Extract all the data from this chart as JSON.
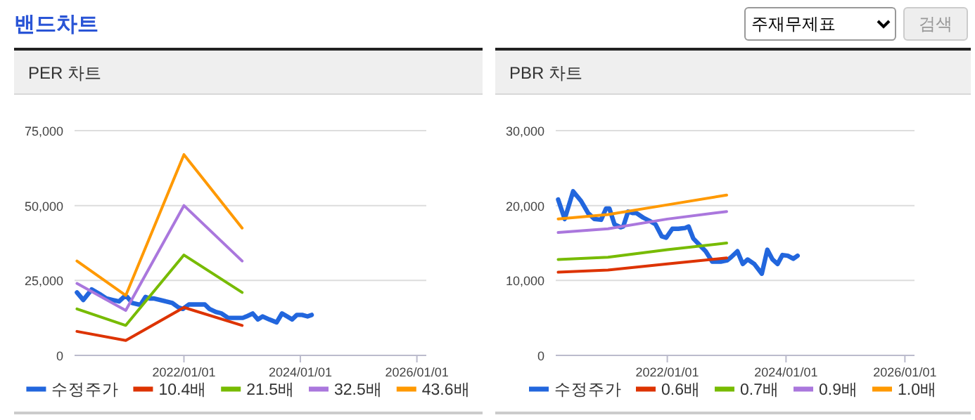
{
  "chart_data": [
    {
      "type": "other",
      "title": "밴드차트",
      "annotations": [
        "주재무제표",
        "검색"
      ]
    },
    {
      "type": "line",
      "title": "PER 차트",
      "xlim": [
        "2020-02-15",
        "2026-03-01"
      ],
      "ylim": [
        0,
        75000
      ],
      "yticks": [
        0,
        {
          "value": 25000,
          "label": "25,000"
        },
        {
          "value": 50000,
          "label": "50,000"
        },
        {
          "value": 75000,
          "label": "75,000"
        }
      ],
      "xticks": [
        {
          "value": "2022-01-01",
          "label": "2022/01/01"
        },
        {
          "value": "2024-01-01",
          "label": "2024/01/01"
        },
        {
          "value": "2026-01-01",
          "label": "2026/01/01"
        }
      ],
      "grid": "y",
      "legend": "bottom",
      "series": [
        {
          "name": "수정주가",
          "color": "#2266dd",
          "x": [
            "2020-03-01",
            "2020-04-10",
            "2020-06-01",
            "2020-07-20",
            "2020-09-01",
            "2020-10-10",
            "2020-11-20",
            "2020-12-20",
            "2021-01-10",
            "2021-02-10",
            "2021-03-20",
            "2021-04-05",
            "2021-05-05",
            "2021-06-01",
            "2021-06-25",
            "2021-08-05",
            "2021-09-10",
            "2021-10-20",
            "2021-11-28",
            "2021-12-25",
            "2022-02-01",
            "2022-03-10",
            "2022-04-20",
            "2022-05-12",
            "2022-06-10",
            "2022-07-20",
            "2022-08-25",
            "2022-10-05",
            "2022-11-25",
            "2023-01-05",
            "2023-01-28",
            "2023-03-08",
            "2023-04-10",
            "2023-05-10",
            "2023-06-20",
            "2023-08-05",
            "2023-09-08",
            "2023-10-10",
            "2023-11-10",
            "2023-12-10",
            "2024-01-12",
            "2024-02-15",
            "2024-03-12"
          ],
          "values": [
            21000,
            18500,
            22000,
            20500,
            19000,
            18500,
            18000,
            19500,
            19500,
            17500,
            17000,
            17000,
            19500,
            19000,
            19000,
            18500,
            18000,
            17500,
            16000,
            15500,
            17000,
            17000,
            17000,
            17000,
            15500,
            14500,
            14000,
            12500,
            12500,
            12500,
            13000,
            14000,
            12000,
            13000,
            12000,
            11000,
            14000,
            13000,
            12000,
            13500,
            13500,
            13000,
            13500
          ]
        },
        {
          "name": "10.4배",
          "color": "#dd3300",
          "x": [
            "2020-03-01",
            "2021-01-01",
            "2022-01-01",
            "2023-01-01"
          ],
          "values": [
            8000,
            5000,
            16000,
            10000
          ]
        },
        {
          "name": "21.5배",
          "color": "#77bb00",
          "x": [
            "2020-03-01",
            "2021-01-01",
            "2022-01-01",
            "2023-01-01"
          ],
          "values": [
            15500,
            10000,
            33500,
            21000
          ]
        },
        {
          "name": "32.5배",
          "color": "#aa77dd",
          "x": [
            "2020-03-01",
            "2021-01-01",
            "2022-01-01",
            "2023-01-01"
          ],
          "values": [
            24000,
            15000,
            50000,
            31500
          ]
        },
        {
          "name": "43.6배",
          "color": "#ff9900",
          "x": [
            "2020-03-01",
            "2021-01-01",
            "2022-01-01",
            "2023-01-01"
          ],
          "values": [
            31500,
            20000,
            67000,
            42500
          ]
        }
      ]
    },
    {
      "type": "line",
      "title": "PBR 차트",
      "xlim": [
        "2020-02-15",
        "2026-03-01"
      ],
      "ylim": [
        0,
        30000
      ],
      "yticks": [
        0,
        {
          "value": 10000,
          "label": "10,000"
        },
        {
          "value": 20000,
          "label": "20,000"
        },
        {
          "value": 30000,
          "label": "30,000"
        }
      ],
      "xticks": [
        {
          "value": "2022-01-01",
          "label": "2022/01/01"
        },
        {
          "value": "2024-01-01",
          "label": "2024/01/01"
        },
        {
          "value": "2026-01-01",
          "label": "2026/01/01"
        }
      ],
      "grid": "y",
      "legend": "bottom",
      "series": [
        {
          "name": "수정주가",
          "color": "#2266dd",
          "x": [
            "2020-03-01",
            "2020-04-10",
            "2020-06-01",
            "2020-07-20",
            "2020-09-01",
            "2020-10-10",
            "2020-11-20",
            "2020-12-20",
            "2021-01-10",
            "2021-02-10",
            "2021-03-20",
            "2021-04-05",
            "2021-05-05",
            "2021-06-01",
            "2021-06-25",
            "2021-08-05",
            "2021-09-10",
            "2021-10-20",
            "2021-11-28",
            "2021-12-25",
            "2022-02-01",
            "2022-03-10",
            "2022-04-20",
            "2022-05-12",
            "2022-06-10",
            "2022-07-20",
            "2022-08-25",
            "2022-10-05",
            "2022-11-25",
            "2023-01-05",
            "2023-01-28",
            "2023-03-08",
            "2023-04-10",
            "2023-05-10",
            "2023-06-20",
            "2023-08-05",
            "2023-09-08",
            "2023-10-10",
            "2023-11-10",
            "2023-12-10",
            "2024-01-12",
            "2024-02-15",
            "2024-03-12"
          ],
          "values": [
            20800,
            18200,
            21900,
            20600,
            19000,
            18200,
            18100,
            19600,
            19600,
            17500,
            17100,
            17200,
            19200,
            19000,
            19000,
            18400,
            18000,
            17500,
            15900,
            15700,
            16900,
            16900,
            17000,
            17200,
            15600,
            14700,
            13900,
            12500,
            12500,
            12700,
            13100,
            13900,
            12200,
            12800,
            12200,
            10900,
            14100,
            12800,
            12200,
            13400,
            13300,
            12900,
            13300
          ]
        },
        {
          "name": "0.6배",
          "color": "#dd3300",
          "x": [
            "2020-03-01",
            "2021-01-01",
            "2022-01-01",
            "2023-01-01"
          ],
          "values": [
            11100,
            11400,
            12200,
            13000
          ]
        },
        {
          "name": "0.7배",
          "color": "#77bb00",
          "x": [
            "2020-03-01",
            "2021-01-01",
            "2022-01-01",
            "2023-01-01"
          ],
          "values": [
            12800,
            13100,
            14100,
            15000
          ]
        },
        {
          "name": "0.9배",
          "color": "#aa77dd",
          "x": [
            "2020-03-01",
            "2021-01-01",
            "2022-01-01",
            "2023-01-01"
          ],
          "values": [
            16400,
            16900,
            18200,
            19200
          ]
        },
        {
          "name": "1.0배",
          "color": "#ff9900",
          "x": [
            "2020-03-01",
            "2021-01-01",
            "2022-01-01",
            "2023-01-01"
          ],
          "values": [
            18200,
            18800,
            20100,
            21400
          ]
        }
      ]
    }
  ]
}
